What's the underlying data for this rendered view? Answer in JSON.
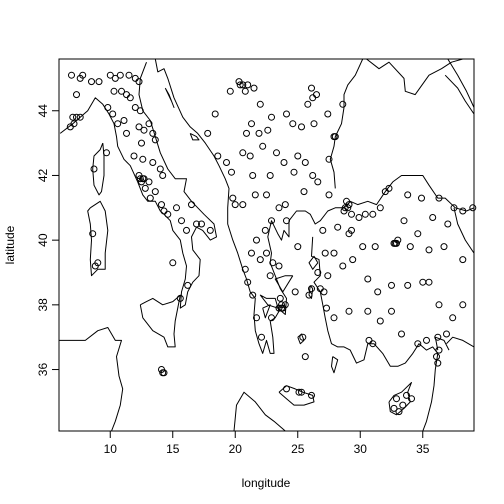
{
  "chart_data": {
    "type": "scatter",
    "title": "",
    "xlabel": "longitude",
    "ylabel": "latitude",
    "xlim": [
      5.9,
      39.1
    ],
    "ylim": [
      34.1,
      45.6
    ],
    "xticks": [
      10,
      15,
      20,
      25,
      30,
      35
    ],
    "yticks": [
      36,
      38,
      40,
      42,
      44
    ],
    "point_marker": "open-circle",
    "basemap": "coastlines",
    "points": [
      [
        6.9,
        45.1
      ],
      [
        7.6,
        45.0
      ],
      [
        7.8,
        45.1
      ],
      [
        8.5,
        44.9
      ],
      [
        9.1,
        44.9
      ],
      [
        7.3,
        44.5
      ],
      [
        7.0,
        43.8
      ],
      [
        7.3,
        43.8
      ],
      [
        7.6,
        43.8
      ],
      [
        7.1,
        43.6
      ],
      [
        6.8,
        43.5
      ],
      [
        10.0,
        45.1
      ],
      [
        10.4,
        45.0
      ],
      [
        10.8,
        45.1
      ],
      [
        11.5,
        45.1
      ],
      [
        12.0,
        45.0
      ],
      [
        12.3,
        44.9
      ],
      [
        11.3,
        44.5
      ],
      [
        10.3,
        44.6
      ],
      [
        10.9,
        44.6
      ],
      [
        11.6,
        44.4
      ],
      [
        12.0,
        44.1
      ],
      [
        12.4,
        44.0
      ],
      [
        9.8,
        44.1
      ],
      [
        10.2,
        43.9
      ],
      [
        10.6,
        43.6
      ],
      [
        11.1,
        43.7
      ],
      [
        11.3,
        43.3
      ],
      [
        12.3,
        43.5
      ],
      [
        12.7,
        43.4
      ],
      [
        13.1,
        43.6
      ],
      [
        13.4,
        43.3
      ],
      [
        13.6,
        43.1
      ],
      [
        12.5,
        43.0
      ],
      [
        11.9,
        42.6
      ],
      [
        12.6,
        42.5
      ],
      [
        13.4,
        42.4
      ],
      [
        14.0,
        42.2
      ],
      [
        14.2,
        42.0
      ],
      [
        13.1,
        41.8
      ],
      [
        12.6,
        41.9
      ],
      [
        12.5,
        41.8
      ],
      [
        12.8,
        41.6
      ],
      [
        13.2,
        41.3
      ],
      [
        13.6,
        41.5
      ],
      [
        14.1,
        41.1
      ],
      [
        14.3,
        40.9
      ],
      [
        14.6,
        40.8
      ],
      [
        15.3,
        41.0
      ],
      [
        15.7,
        40.6
      ],
      [
        16.1,
        40.3
      ],
      [
        16.9,
        40.5
      ],
      [
        17.3,
        40.5
      ],
      [
        16.5,
        41.1
      ],
      [
        18.0,
        40.3
      ],
      [
        15.0,
        39.3
      ],
      [
        16.2,
        38.6
      ],
      [
        15.6,
        38.2
      ],
      [
        14.1,
        36.0
      ],
      [
        14.2,
        35.9
      ],
      [
        14.3,
        35.9
      ],
      [
        8.8,
        39.2
      ],
      [
        9.0,
        39.3
      ],
      [
        8.6,
        40.2
      ],
      [
        9.7,
        42.7
      ],
      [
        8.7,
        42.2
      ],
      [
        12.4,
        41.9
      ],
      [
        12.7,
        41.9
      ],
      [
        12.3,
        42.0
      ],
      [
        20.4,
        44.8
      ],
      [
        20.6,
        44.8
      ],
      [
        20.8,
        44.6
      ],
      [
        21.0,
        44.8
      ],
      [
        20.3,
        44.9
      ],
      [
        21.5,
        44.7
      ],
      [
        22.0,
        44.2
      ],
      [
        19.6,
        44.6
      ],
      [
        18.4,
        43.9
      ],
      [
        17.8,
        43.3
      ],
      [
        18.6,
        42.6
      ],
      [
        19.3,
        42.4
      ],
      [
        19.7,
        42.1
      ],
      [
        19.8,
        41.3
      ],
      [
        20.0,
        41.1
      ],
      [
        20.6,
        41.1
      ],
      [
        21.4,
        42.0
      ],
      [
        21.6,
        41.4
      ],
      [
        22.5,
        41.4
      ],
      [
        23.3,
        42.7
      ],
      [
        23.9,
        42.4
      ],
      [
        24.7,
        42.1
      ],
      [
        25.0,
        42.6
      ],
      [
        25.6,
        42.4
      ],
      [
        26.2,
        42.0
      ],
      [
        26.6,
        41.8
      ],
      [
        27.5,
        42.5
      ],
      [
        27.9,
        43.2
      ],
      [
        26.3,
        43.6
      ],
      [
        25.3,
        43.5
      ],
      [
        24.6,
        43.6
      ],
      [
        24.1,
        43.9
      ],
      [
        22.9,
        43.8
      ],
      [
        22.6,
        43.4
      ],
      [
        21.9,
        43.3
      ],
      [
        21.3,
        43.6
      ],
      [
        20.9,
        43.3
      ],
      [
        20.6,
        42.7
      ],
      [
        21.2,
        42.6
      ],
      [
        22.2,
        42.9
      ],
      [
        22.8,
        42.0
      ],
      [
        26.1,
        44.7
      ],
      [
        26.2,
        44.4
      ],
      [
        25.8,
        44.2
      ],
      [
        26.5,
        44.5
      ],
      [
        28.6,
        44.2
      ],
      [
        28.0,
        43.2
      ],
      [
        27.4,
        43.9
      ],
      [
        25.5,
        41.5
      ],
      [
        24.0,
        41.1
      ],
      [
        23.5,
        41.0
      ],
      [
        22.9,
        40.6
      ],
      [
        22.4,
        40.3
      ],
      [
        21.7,
        40.0
      ],
      [
        21.3,
        39.6
      ],
      [
        22.0,
        39.4
      ],
      [
        22.5,
        39.6
      ],
      [
        23.0,
        39.3
      ],
      [
        22.8,
        38.9
      ],
      [
        23.6,
        38.2
      ],
      [
        23.7,
        38.0
      ],
      [
        23.8,
        37.9
      ],
      [
        23.5,
        37.9
      ],
      [
        22.9,
        37.6
      ],
      [
        22.1,
        37.0
      ],
      [
        21.7,
        37.6
      ],
      [
        21.4,
        38.3
      ],
      [
        21.0,
        38.7
      ],
      [
        20.8,
        39.1
      ],
      [
        24.8,
        38.4
      ],
      [
        25.9,
        38.3
      ],
      [
        26.1,
        38.5
      ],
      [
        26.6,
        39.0
      ],
      [
        25.0,
        39.8
      ],
      [
        24.1,
        40.6
      ],
      [
        23.5,
        39.2
      ],
      [
        25.4,
        37.0
      ],
      [
        25.6,
        36.4
      ],
      [
        25.1,
        35.3
      ],
      [
        24.1,
        35.4
      ],
      [
        26.1,
        35.2
      ],
      [
        23.7,
        37.9
      ],
      [
        24.0,
        38.0
      ],
      [
        28.8,
        41.0
      ],
      [
        29.0,
        41.0
      ],
      [
        29.1,
        41.1
      ],
      [
        28.9,
        41.2
      ],
      [
        28.7,
        40.9
      ],
      [
        29.3,
        40.8
      ],
      [
        29.9,
        40.7
      ],
      [
        30.4,
        40.8
      ],
      [
        31.0,
        40.8
      ],
      [
        31.6,
        41.0
      ],
      [
        32.0,
        41.5
      ],
      [
        32.3,
        41.6
      ],
      [
        33.8,
        41.4
      ],
      [
        34.9,
        41.3
      ],
      [
        36.3,
        41.3
      ],
      [
        37.5,
        41.0
      ],
      [
        38.2,
        40.9
      ],
      [
        39.0,
        41.0
      ],
      [
        27.5,
        41.4
      ],
      [
        28.2,
        40.4
      ],
      [
        29.1,
        40.2
      ],
      [
        29.3,
        40.3
      ],
      [
        30.2,
        39.8
      ],
      [
        31.2,
        39.8
      ],
      [
        32.8,
        39.9
      ],
      [
        32.9,
        39.9
      ],
      [
        33.0,
        40.0
      ],
      [
        32.7,
        39.9
      ],
      [
        34.0,
        39.8
      ],
      [
        35.5,
        39.7
      ],
      [
        36.7,
        39.8
      ],
      [
        38.2,
        39.4
      ],
      [
        37.0,
        40.5
      ],
      [
        35.8,
        40.7
      ],
      [
        34.6,
        40.2
      ],
      [
        33.5,
        40.6
      ],
      [
        27.2,
        39.6
      ],
      [
        27.9,
        39.6
      ],
      [
        28.6,
        39.2
      ],
      [
        29.4,
        39.4
      ],
      [
        30.6,
        38.8
      ],
      [
        31.4,
        38.4
      ],
      [
        32.5,
        38.6
      ],
      [
        33.8,
        38.6
      ],
      [
        35.0,
        38.7
      ],
      [
        35.5,
        38.7
      ],
      [
        36.3,
        38.0
      ],
      [
        37.4,
        37.6
      ],
      [
        38.2,
        38.0
      ],
      [
        36.9,
        37.1
      ],
      [
        36.2,
        37.0
      ],
      [
        35.3,
        36.9
      ],
      [
        34.6,
        36.8
      ],
      [
        33.3,
        37.1
      ],
      [
        32.5,
        37.8
      ],
      [
        31.6,
        37.5
      ],
      [
        30.6,
        37.8
      ],
      [
        29.1,
        37.8
      ],
      [
        27.9,
        37.6
      ],
      [
        27.3,
        37.9
      ],
      [
        27.1,
        38.4
      ],
      [
        26.8,
        38.5
      ],
      [
        27.4,
        38.9
      ],
      [
        30.7,
        36.9
      ],
      [
        31.0,
        36.8
      ],
      [
        36.1,
        36.4
      ],
      [
        36.2,
        36.2
      ],
      [
        36.3,
        36.6
      ],
      [
        32.7,
        34.8
      ],
      [
        33.1,
        34.7
      ],
      [
        33.4,
        34.9
      ],
      [
        32.9,
        35.1
      ],
      [
        33.7,
        35.2
      ],
      [
        34.1,
        35.1
      ],
      [
        25.3,
        35.3
      ],
      [
        27.0,
        40.3
      ]
    ]
  }
}
